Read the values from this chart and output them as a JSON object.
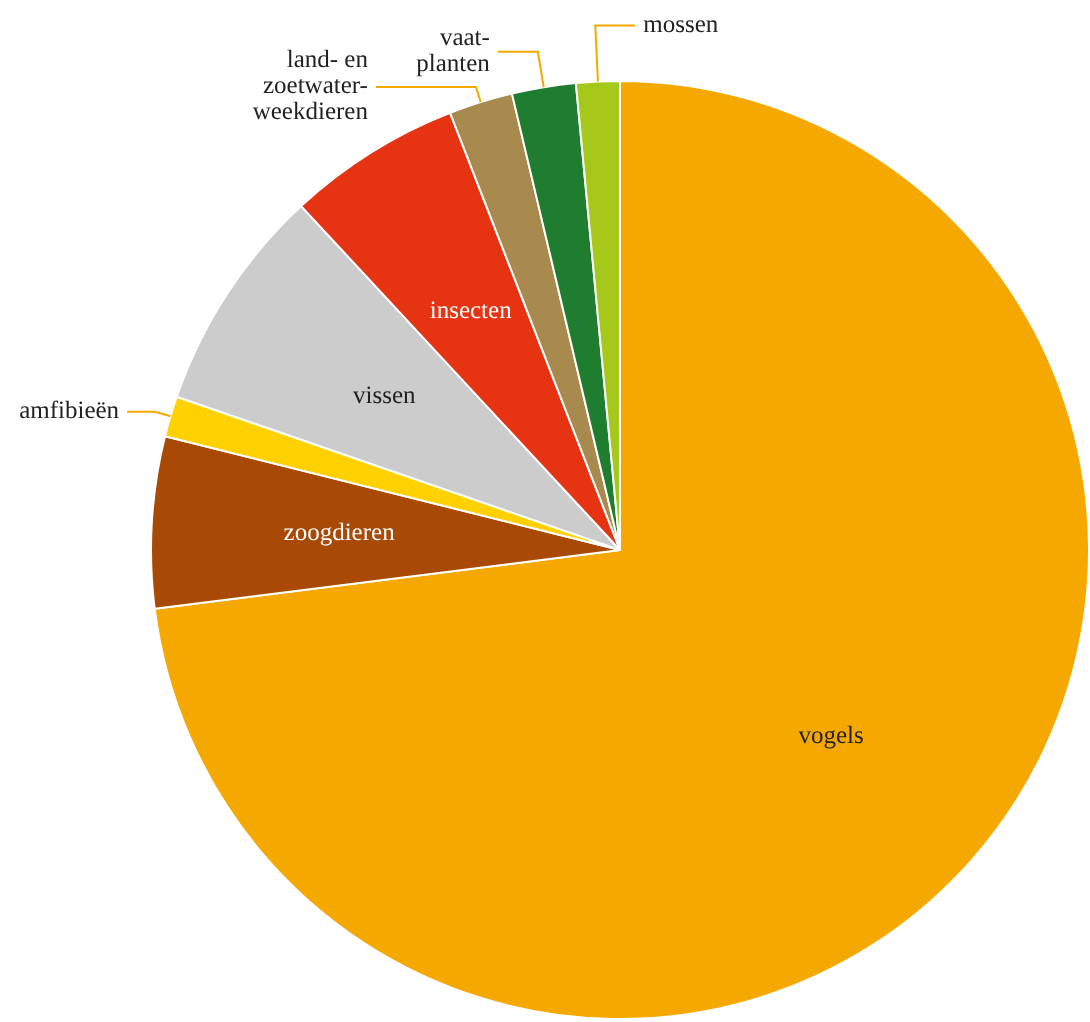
{
  "chart_data": {
    "type": "pie",
    "legend": false,
    "categories": [
      "vogels",
      "zoogdieren",
      "amfibieën",
      "vissen",
      "insecten",
      "land- en\nzoetwater-\nweekdieren",
      "vaat-\nplanten",
      "mossen"
    ],
    "values": [
      73,
      5.9,
      1.4,
      7.8,
      6.0,
      2.2,
      2.2,
      1.5
    ],
    "colors": [
      "#f5a800",
      "#a84a05",
      "#ffd100",
      "#cccccc",
      "#e63312",
      "#a88a4e",
      "#1e7d2e",
      "#a5c81a"
    ]
  }
}
